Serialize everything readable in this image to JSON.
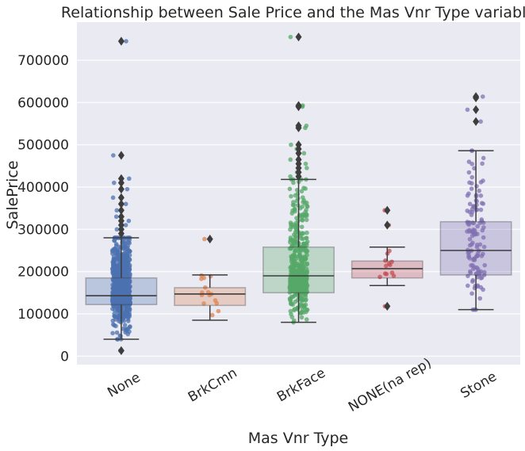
{
  "chart_data": {
    "type": "box",
    "title": "Relationship between Sale Price and the Mas Vnr Type variable",
    "xlabel": "Mas Vnr Type",
    "ylabel": "SalePrice",
    "ylim": [
      -20000,
      790000
    ],
    "yticks": [
      0,
      100000,
      200000,
      300000,
      400000,
      500000,
      600000,
      700000
    ],
    "ytick_labels": [
      "0",
      "100000",
      "200000",
      "300000",
      "400000",
      "500000",
      "600000",
      "700000"
    ],
    "grid": true,
    "categories": [
      "None",
      "BrkCmn",
      "BrkFace",
      "NONE(na rep)",
      "Stone"
    ],
    "colors": [
      "#4c72b0",
      "#dd8452",
      "#55a868",
      "#c44e52",
      "#8172b3"
    ],
    "boxes": [
      {
        "category": "None",
        "min": 40000,
        "q1": 122000,
        "median": 143000,
        "q3": 185000,
        "max": 280000,
        "outliers": [
          290000,
          300000,
          310000,
          320000,
          330000,
          345000,
          360000,
          375000,
          395000,
          410000,
          420000,
          475000,
          745000,
          13000
        ]
      },
      {
        "category": "BrkCmn",
        "min": 85000,
        "q1": 120000,
        "median": 147000,
        "q3": 162000,
        "max": 192000,
        "outliers": [
          277000
        ]
      },
      {
        "category": "BrkFace",
        "min": 80000,
        "q1": 150000,
        "median": 190000,
        "q3": 258000,
        "max": 418000,
        "outliers": [
          425000,
          435000,
          445000,
          455000,
          465000,
          480000,
          490000,
          500000,
          540000,
          545000,
          590000,
          593000,
          755000
        ]
      },
      {
        "category": "NONE(na rep)",
        "min": 167000,
        "q1": 185000,
        "median": 207000,
        "q3": 225000,
        "max": 258000,
        "outliers": [
          310000,
          345000,
          118000
        ]
      },
      {
        "category": "Stone",
        "min": 110000,
        "q1": 192000,
        "median": 250000,
        "q3": 318000,
        "max": 486000,
        "outliers": [
          555000,
          583000,
          611000,
          614000
        ]
      }
    ],
    "strip_counts": [
      860,
      15,
      445,
      12,
      127
    ]
  }
}
